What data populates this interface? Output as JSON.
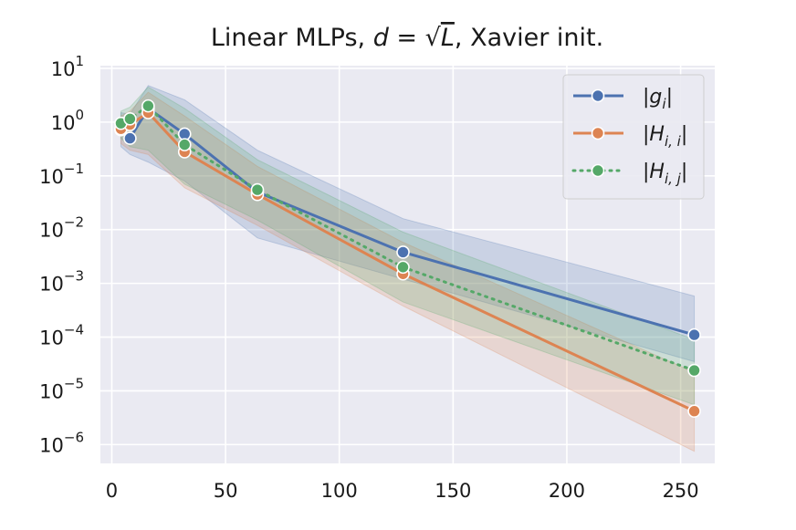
{
  "chart_data": {
    "type": "line",
    "title": {
      "prefix": "Linear MLPs, ",
      "math_d": "d",
      "math_eq": " = ",
      "math_sqrt": "√",
      "math_L": "L",
      "suffix": ", Xavier init."
    },
    "xlabel": "",
    "ylabel": "",
    "yscale": "log",
    "xlim": [
      -5,
      265
    ],
    "ylim_log10": [
      -6.35,
      1.05
    ],
    "x_ticks": [
      0,
      50,
      100,
      150,
      200,
      250
    ],
    "y_ticks": [
      {
        "base": "10",
        "exp": "1",
        "value": 1
      },
      {
        "base": "10",
        "exp": "0",
        "value": 0
      },
      {
        "base": "10",
        "exp": "−1",
        "value": -1
      },
      {
        "base": "10",
        "exp": "−2",
        "value": -2
      },
      {
        "base": "10",
        "exp": "−3",
        "value": -3
      },
      {
        "base": "10",
        "exp": "−4",
        "value": -4
      },
      {
        "base": "10",
        "exp": "−5",
        "value": -5
      },
      {
        "base": "10",
        "exp": "−6",
        "value": -6
      }
    ],
    "grid": true,
    "legend_position": "top-right",
    "x": [
      4,
      8,
      16,
      32,
      64,
      128,
      256
    ],
    "series": [
      {
        "name": "g_i",
        "label_main": "|g",
        "label_sub": "i",
        "label_close": "|",
        "color": "#4c72b0",
        "linestyle": "solid",
        "values": [
          0.72,
          0.5,
          1.8,
          0.6,
          0.05,
          0.0038,
          0.00011
        ],
        "band_low": [
          0.35,
          0.25,
          0.18,
          0.08,
          0.007,
          0.0012,
          3.5e-05
        ],
        "band_high": [
          1.5,
          1.4,
          4.8,
          2.6,
          0.3,
          0.016,
          0.00058
        ]
      },
      {
        "name": "H_i,i",
        "label_main": "|H",
        "label_sub": "i, i",
        "label_close": "|",
        "color": "#dd8452",
        "linestyle": "solid",
        "values": [
          0.75,
          0.9,
          1.5,
          0.28,
          0.045,
          0.0015,
          4.2e-06
        ],
        "band_low": [
          0.4,
          0.3,
          0.25,
          0.06,
          0.012,
          0.00038,
          7.5e-07
        ],
        "band_high": [
          1.3,
          1.6,
          3.6,
          1.3,
          0.15,
          0.0058,
          2.2e-05
        ]
      },
      {
        "name": "H_i,j",
        "label_main": "|H",
        "label_sub": "i, j",
        "label_close": "|",
        "color": "#55a868",
        "linestyle": "dotted",
        "values": [
          0.95,
          1.15,
          2.0,
          0.38,
          0.055,
          0.002,
          2.4e-05
        ],
        "band_low": [
          0.5,
          0.35,
          0.3,
          0.07,
          0.015,
          0.00045,
          5.5e-06
        ],
        "band_high": [
          1.6,
          1.9,
          4.5,
          1.8,
          0.2,
          0.009,
          9e-05
        ]
      }
    ]
  }
}
